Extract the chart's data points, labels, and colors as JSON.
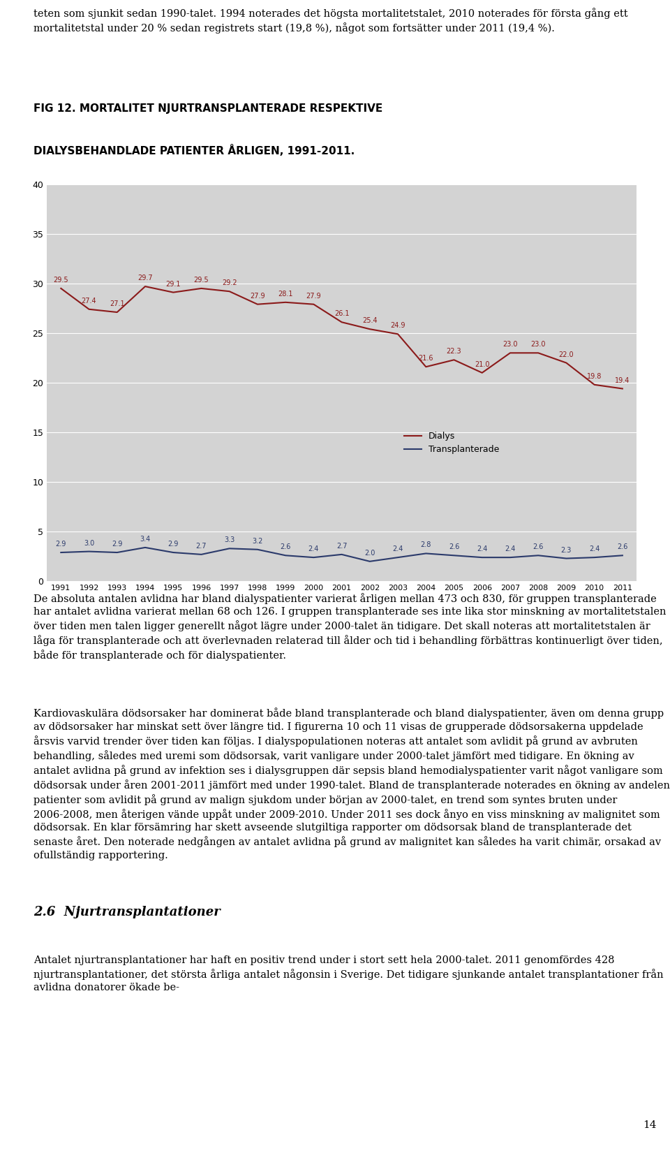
{
  "title_line1": "FIG 12. MORTALITET NJURTRANSPLANTERADE RESPEKTIVE",
  "title_line2": "DIALYSBEHANDLADE PATIENTER ÅRLIGEN, 1991-2011.",
  "years": [
    1991,
    1992,
    1993,
    1994,
    1995,
    1996,
    1997,
    1998,
    1999,
    2000,
    2001,
    2002,
    2003,
    2004,
    2005,
    2006,
    2007,
    2008,
    2009,
    2010,
    2011
  ],
  "dialys": [
    29.5,
    27.4,
    27.1,
    29.7,
    29.1,
    29.5,
    29.2,
    27.9,
    28.1,
    27.9,
    26.1,
    25.4,
    24.9,
    21.6,
    22.3,
    21.0,
    23.0,
    23.0,
    22.0,
    19.8,
    19.4
  ],
  "transplanterade": [
    2.9,
    3.0,
    2.9,
    3.4,
    2.9,
    2.7,
    3.3,
    3.2,
    2.6,
    2.4,
    2.7,
    2.0,
    2.4,
    2.8,
    2.6,
    2.4,
    2.4,
    2.6,
    2.3,
    2.4,
    2.6
  ],
  "dialys_color": "#8B1A1A",
  "transplanterade_color": "#2B3A6B",
  "plot_bg_color": "#D3D3D3",
  "ylim": [
    0,
    40
  ],
  "yticks": [
    0,
    5,
    10,
    15,
    20,
    25,
    30,
    35,
    40
  ],
  "legend_dialys": "Dialys",
  "legend_transplanterade": "Transplanterade",
  "top_text": "teten som sjunkit sedan 1990-talet. 1994 noterades det högsta mortalitetstalet, 2010 noterades för första gång ett mortalitetstal under 20 % sedan registrets start (19,8 %), något som fortsätter under 2011 (19,4 %).",
  "body_text_1": "De absoluta antalen avlidna har bland dialyspatienter varierat årligen mellan 473 och 830, för gruppen transplanterade har antalet avlidna varierat mellan 68 och 126. I gruppen transplanterade ses inte lika stor minskning av mortalitetstalen över tiden men talen ligger generellt något lägre under 2000-talet än tidigare. Det skall noteras att mortalitetstalen är låga för transplanterade och att överlevnaden relaterad till ålder och tid i behandling förbättras kontinuerligt över tiden, både för transplanterade och för dialyspatienter.",
  "body_text_2": "Kardiovaskulära dödsorsaker har dominerat både bland transplanterade och bland dialyspatienter, även om denna grupp av dödsorsaker har minskat sett över längre tid. I figurerna 10 och 11 visas de grupperade dödsorsakerna uppdelade årsvis varvid trender över tiden kan följas. I dialyspopulationen noteras att antalet som avlidit på grund av avbruten behandling, således med uremi som dödsorsak, varit vanligare under 2000-talet jämfört med tidigare. En ökning av antalet avlidna på grund av infektion ses i dialysgruppen där sepsis bland hemodialyspatienter varit något vanligare som dödsorsak under åren 2001-2011 jämfört med under 1990-talet. Bland de transplanterade noterades en ökning av andelen patienter som avlidit på grund av malign sjukdom under början av 2000-talet, en trend som syntes bruten under 2006-2008, men återigen vände uppåt under 2009-2010. Under 2011 ses dock ånyo en viss minskning av malignitet som dödsorsak. En klar försämring har skett avseende slutgiltiga rapporter om dödsorsak bland de transplanterade det senaste året. Den noterade nedgången av antalet avlidna på grund av malignitet kan således ha varit chimär, orsakad av ofullständig rapportering.",
  "section_title": "2.6  Njurtransplantationer",
  "body_text_3": "Antalet njurtransplantationer har haft en positiv trend under i stort sett hela 2000-talet. 2011 genomfördes 428 njurtransplantationer, det största årliga antalet någonsin i Sverige. Det tidigare sjunkande antalet transplantationer från avlidna donatorer ökade be-",
  "page_number": "14"
}
